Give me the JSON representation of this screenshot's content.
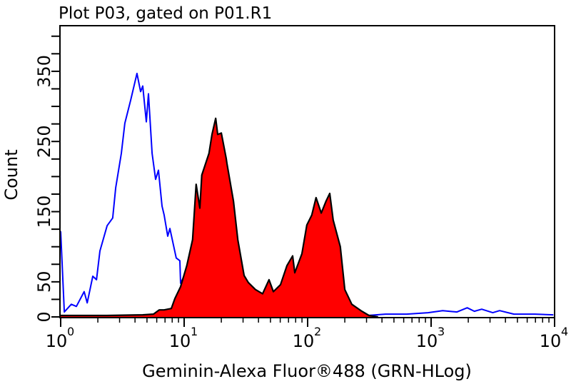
{
  "chart_data": {
    "type": "area",
    "title": "Plot P03, gated on P01.R1",
    "xlabel": "Geminin-Alexa Fluor®488 (GRN-HLog)",
    "ylabel": "Count",
    "x_scale": "log",
    "xlim": [
      1,
      10000
    ],
    "ylim": [
      0,
      415
    ],
    "x_ticks": [
      {
        "base": "10",
        "exp": "0"
      },
      {
        "base": "10",
        "exp": "1"
      },
      {
        "base": "10",
        "exp": "2"
      },
      {
        "base": "10",
        "exp": "3"
      },
      {
        "base": "10",
        "exp": "4"
      }
    ],
    "y_tick_labels": [
      "0",
      "50",
      "150",
      "250",
      "350"
    ],
    "y_tick_values": [
      0,
      50,
      150,
      250,
      350
    ],
    "y_minor_step": 25,
    "grid": false,
    "series": [
      {
        "style": "line",
        "color": "#0000ff",
        "x": [
          1.0,
          1.07,
          1.22,
          1.34,
          1.55,
          1.64,
          1.82,
          1.95,
          2.08,
          2.38,
          2.64,
          2.79,
          3.1,
          3.31,
          3.69,
          4.15,
          4.44,
          4.62,
          4.94,
          5.14,
          5.5,
          5.87,
          6.19,
          6.62,
          6.89,
          7.36,
          7.66,
          8.63,
          9.23,
          9.35,
          10.3,
          12.5,
          17.5,
          26,
          60,
          150,
          306,
          427,
          634,
          945,
          1240,
          1620,
          1960,
          2240,
          2570,
          3160,
          3590,
          4680,
          6930,
          9770
        ],
        "y": [
          122,
          7,
          18,
          15,
          36,
          20,
          58,
          53,
          94,
          130,
          141,
          184,
          233,
          276,
          309,
          347,
          321,
          329,
          278,
          318,
          233,
          196,
          209,
          158,
          145,
          115,
          126,
          84,
          80,
          48,
          63,
          30,
          10,
          4,
          2,
          2,
          2,
          4,
          4,
          6,
          9,
          7,
          13,
          8,
          11,
          6,
          9,
          4,
          4,
          3
        ]
      },
      {
        "style": "filled",
        "color": "#ff0000",
        "outline": "#000000",
        "x": [
          1.0,
          2.38,
          4.62,
          5.64,
          6.28,
          6.89,
          7.87,
          8.41,
          9.35,
          10.5,
          11.7,
          12.5,
          13.4,
          13.9,
          15.9,
          16.8,
          18.0,
          18.7,
          20.0,
          21.9,
          22.2,
          25.1,
          27.2,
          30.6,
          33.1,
          37.8,
          43.2,
          48.7,
          52.8,
          60.3,
          68.0,
          75.6,
          78.7,
          89.9,
          98.6,
          108,
          117,
          129,
          141,
          151,
          161,
          184,
          200,
          228,
          275,
          314,
          372
        ],
        "y": [
          2,
          2,
          3,
          4,
          10,
          10,
          12,
          26,
          43,
          73,
          110,
          189,
          155,
          202,
          233,
          260,
          283,
          260,
          262,
          226,
          219,
          165,
          110,
          59,
          49,
          39,
          33,
          53,
          36,
          46,
          73,
          87,
          63,
          90,
          131,
          145,
          170,
          148,
          165,
          176,
          138,
          100,
          39,
          18,
          8,
          2,
          0
        ]
      }
    ]
  }
}
